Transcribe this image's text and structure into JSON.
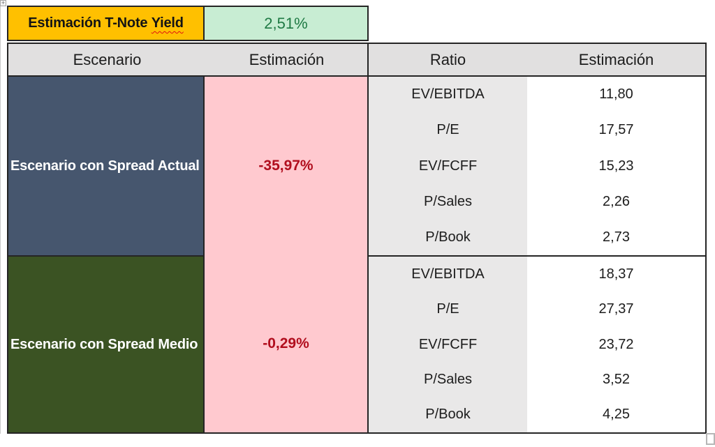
{
  "colors": {
    "orange_fill": "#FFC000",
    "good_green_fill": "#C8EDD3",
    "good_green_text": "#1F7A44",
    "header_gray": "#E1E0E0",
    "ratio_column_gray": "#E9E8E8",
    "scenario_actual_slate": "#46566E",
    "scenario_medio_olive": "#3B5323",
    "bad_pink_fill": "#FFC9CF",
    "bad_red_text": "#B10E1E",
    "cell_border": "#242424"
  },
  "tnote": {
    "title_prefix": "Estimación T-Note",
    "title_underlined": "Yield",
    "value": "2,51%"
  },
  "left_table": {
    "headers": {
      "scenario": "Escenario",
      "estimate": "Estimación"
    },
    "rows": [
      {
        "scenario": "Escenario con Spread Actual",
        "estimate": "-35,97%"
      },
      {
        "scenario": "Escenario con Spread Medio",
        "estimate": "-0,29%"
      }
    ]
  },
  "right_table": {
    "headers": {
      "ratio": "Ratio",
      "estimate": "Estimación"
    },
    "blocks": [
      {
        "rows": [
          {
            "ratio": "EV/EBITDA",
            "estimate": "11,80"
          },
          {
            "ratio": "P/E",
            "estimate": "17,57"
          },
          {
            "ratio": "EV/FCFF",
            "estimate": "15,23"
          },
          {
            "ratio": "P/Sales",
            "estimate": "2,26"
          },
          {
            "ratio": "P/Book",
            "estimate": "2,73"
          }
        ]
      },
      {
        "rows": [
          {
            "ratio": "EV/EBITDA",
            "estimate": "18,37"
          },
          {
            "ratio": "P/E",
            "estimate": "27,37"
          },
          {
            "ratio": "EV/FCFF",
            "estimate": "23,72"
          },
          {
            "ratio": "P/Sales",
            "estimate": "3,52"
          },
          {
            "ratio": "P/Book",
            "estimate": "4,25"
          }
        ]
      }
    ]
  },
  "chrome": {
    "outline_button_glyph": "+"
  }
}
